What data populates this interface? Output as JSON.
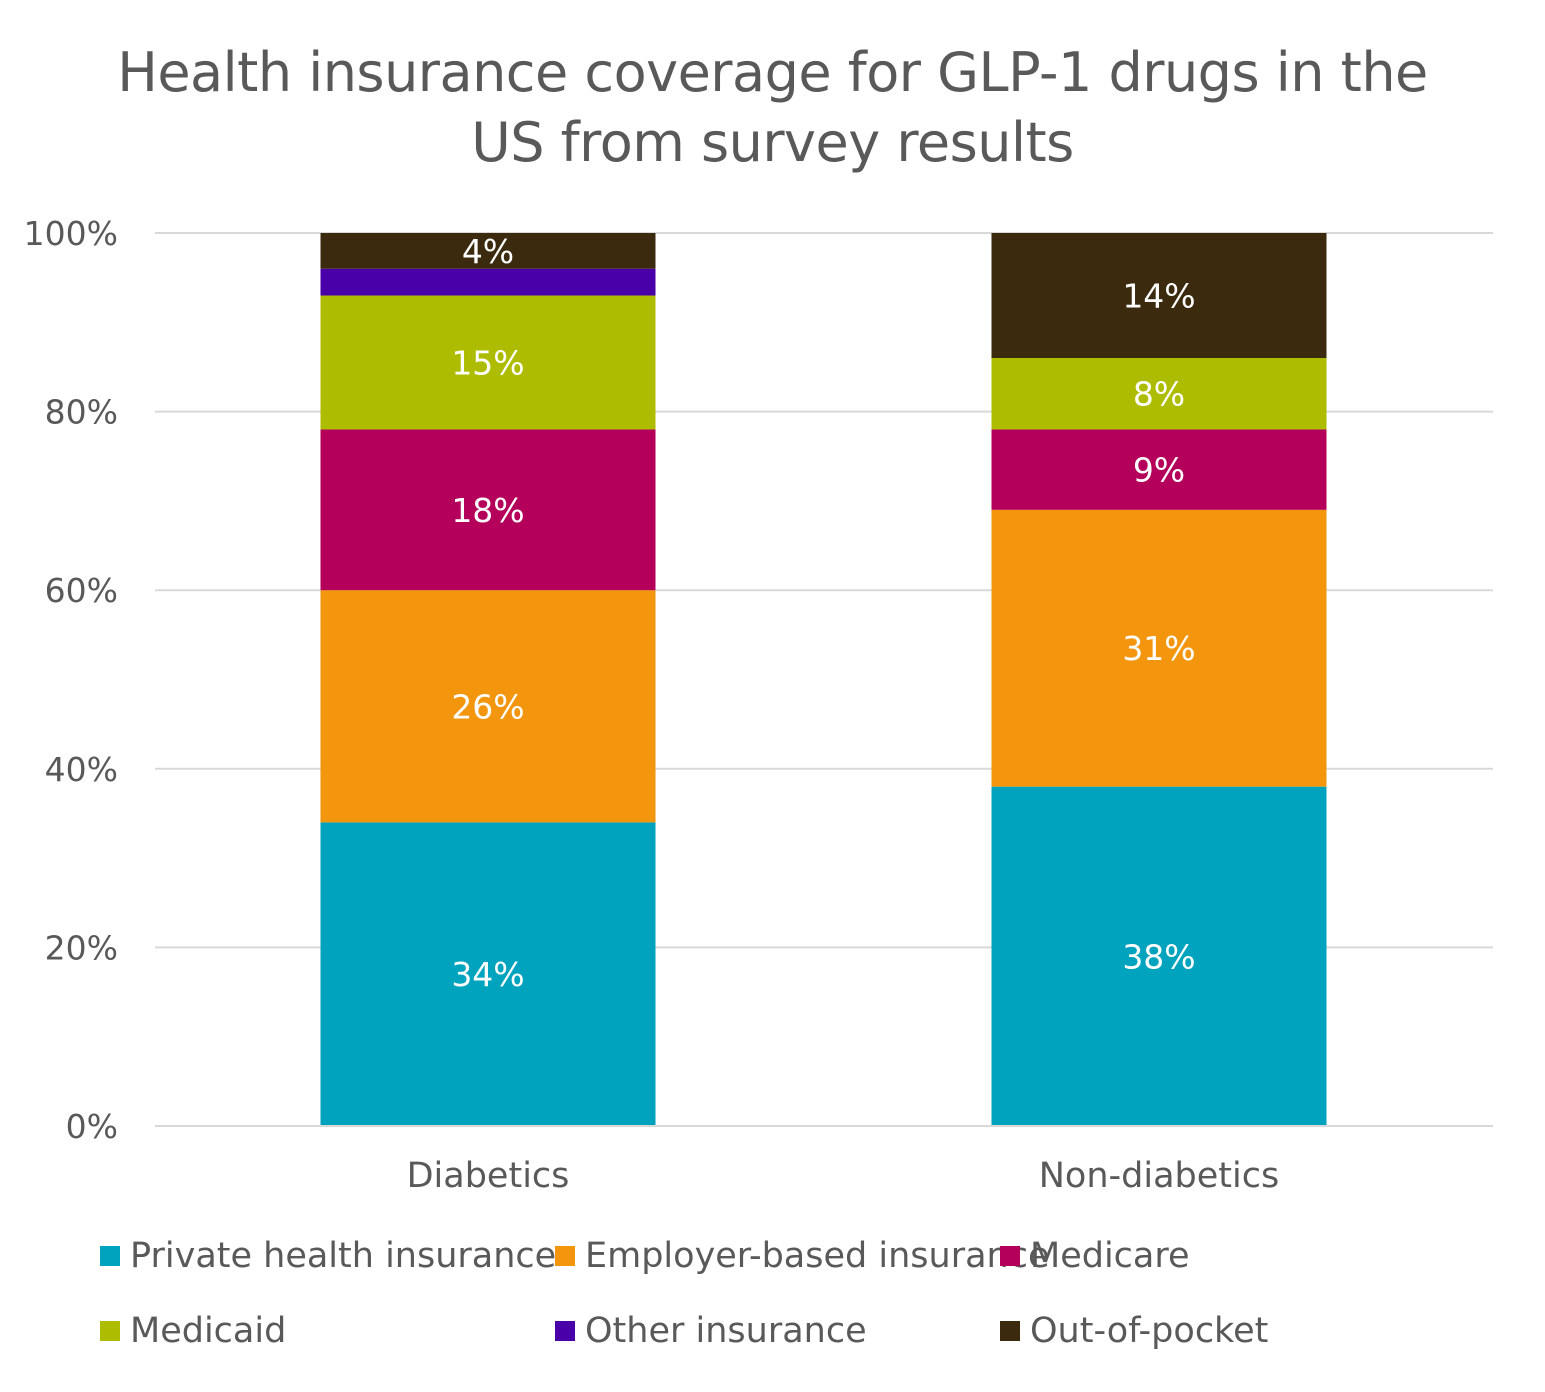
{
  "chart_data": {
    "type": "bar",
    "stacked": true,
    "normalized": true,
    "title": [
      "Health insurance coverage for GLP-1 drugs in the",
      "US from survey results"
    ],
    "xlabel": "",
    "ylabel": "",
    "ylim": [
      0,
      100
    ],
    "yticks": [
      "0%",
      "20%",
      "40%",
      "60%",
      "80%",
      "100%"
    ],
    "ytick_values": [
      0,
      20,
      40,
      60,
      80,
      100
    ],
    "categories": [
      "Diabetics",
      "Non-diabetics"
    ],
    "grid": true,
    "legend_position": "bottom",
    "series": [
      {
        "name": "Private health insurance",
        "color": "#00A3BE",
        "values": [
          34,
          38
        ],
        "labels": [
          "34%",
          "38%"
        ]
      },
      {
        "name": "Employer-based insurance",
        "color": "#F3960E",
        "values": [
          26,
          31
        ],
        "labels": [
          "26%",
          "31%"
        ]
      },
      {
        "name": "Medicare",
        "color": "#B5005B",
        "values": [
          18,
          9
        ],
        "labels": [
          "18%",
          "9%"
        ]
      },
      {
        "name": "Medicaid",
        "color": "#AEBC00",
        "values": [
          15,
          8
        ],
        "labels": [
          "15%",
          "8%"
        ]
      },
      {
        "name": "Other insurance",
        "color": "#4A00A8",
        "values": [
          3,
          0
        ],
        "labels": [
          "",
          ""
        ]
      },
      {
        "name": "Out-of-pocket",
        "color": "#3B2A0E",
        "values": [
          4,
          14
        ],
        "labels": [
          "4%",
          "14%"
        ]
      }
    ]
  }
}
